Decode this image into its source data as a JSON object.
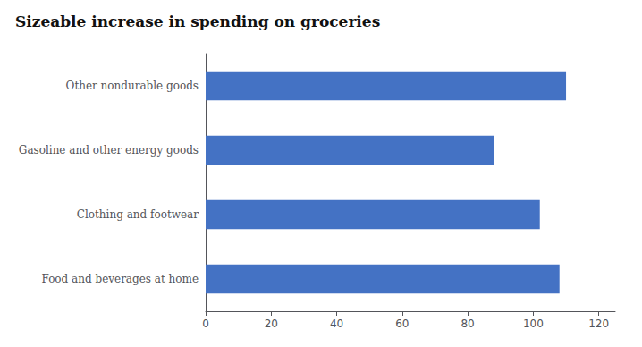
{
  "chart_data": {
    "type": "bar",
    "orientation": "horizontal",
    "title": "Sizeable increase in spending on groceries",
    "categories": [
      "Food and beverages at home",
      "Clothing and footwear",
      "Gasoline and other energy goods",
      "Other nondurable goods"
    ],
    "values": [
      108,
      102,
      88,
      110
    ],
    "color": "#4472C4",
    "xlim": [
      0,
      125
    ],
    "xticks": [
      0,
      20,
      40,
      60,
      80,
      100,
      120
    ],
    "grid": false
  }
}
